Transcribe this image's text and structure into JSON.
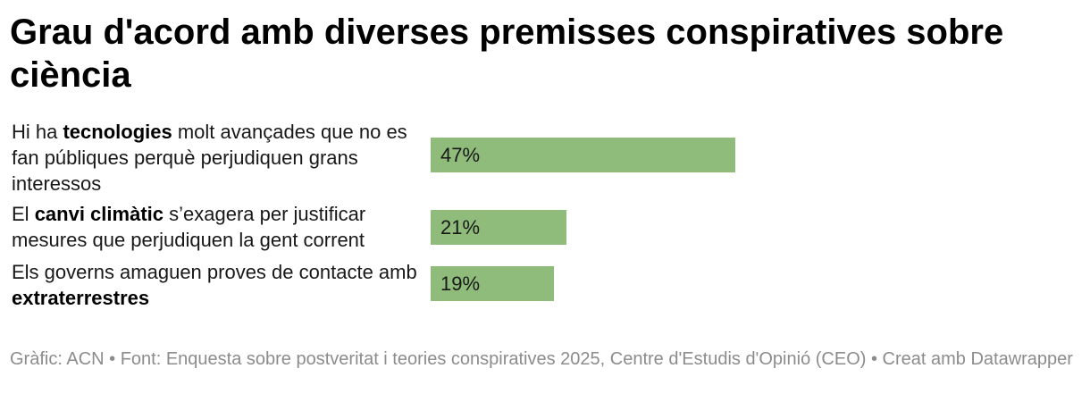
{
  "chart_data": {
    "type": "bar",
    "orientation": "horizontal",
    "title": "Grau d'acord amb diverses premisses conspiratives sobre ciència",
    "categories": [
      "Hi ha tecnologies molt avançades que no es fan públiques perquè perjudiquen grans interessos",
      "El canvi climàtic s’exagera per justificar mesures que perjudiquen la gent corrent",
      "Els governs amaguen proves de contacte amb extraterrestres"
    ],
    "category_parts": [
      {
        "pre": "Hi ha ",
        "bold": "tecnologies",
        "post": " molt avançades que no es fan públiques perquè perjudiquen grans interessos"
      },
      {
        "pre": "El ",
        "bold": "canvi climàtic",
        "post": " s’exagera per justificar mesures que perjudiquen la gent corrent"
      },
      {
        "pre": "Els governs amaguen proves de contacte amb ",
        "bold": "extraterrestres",
        "post": ""
      }
    ],
    "values": [
      47,
      21,
      19
    ],
    "value_labels": [
      "47%",
      "21%",
      "19%"
    ],
    "unit": "%",
    "xlim": [
      0,
      100
    ],
    "bar_color": "#8fbc7a",
    "grid": false,
    "legend": "none",
    "xlabel": "",
    "ylabel": ""
  },
  "footer": "Gràfic: ACN • Font: Enquesta sobre postveritat i teories conspiratives 2025, Centre d'Estudis d'Opinió (CEO) • Creat amb Datawrapper"
}
